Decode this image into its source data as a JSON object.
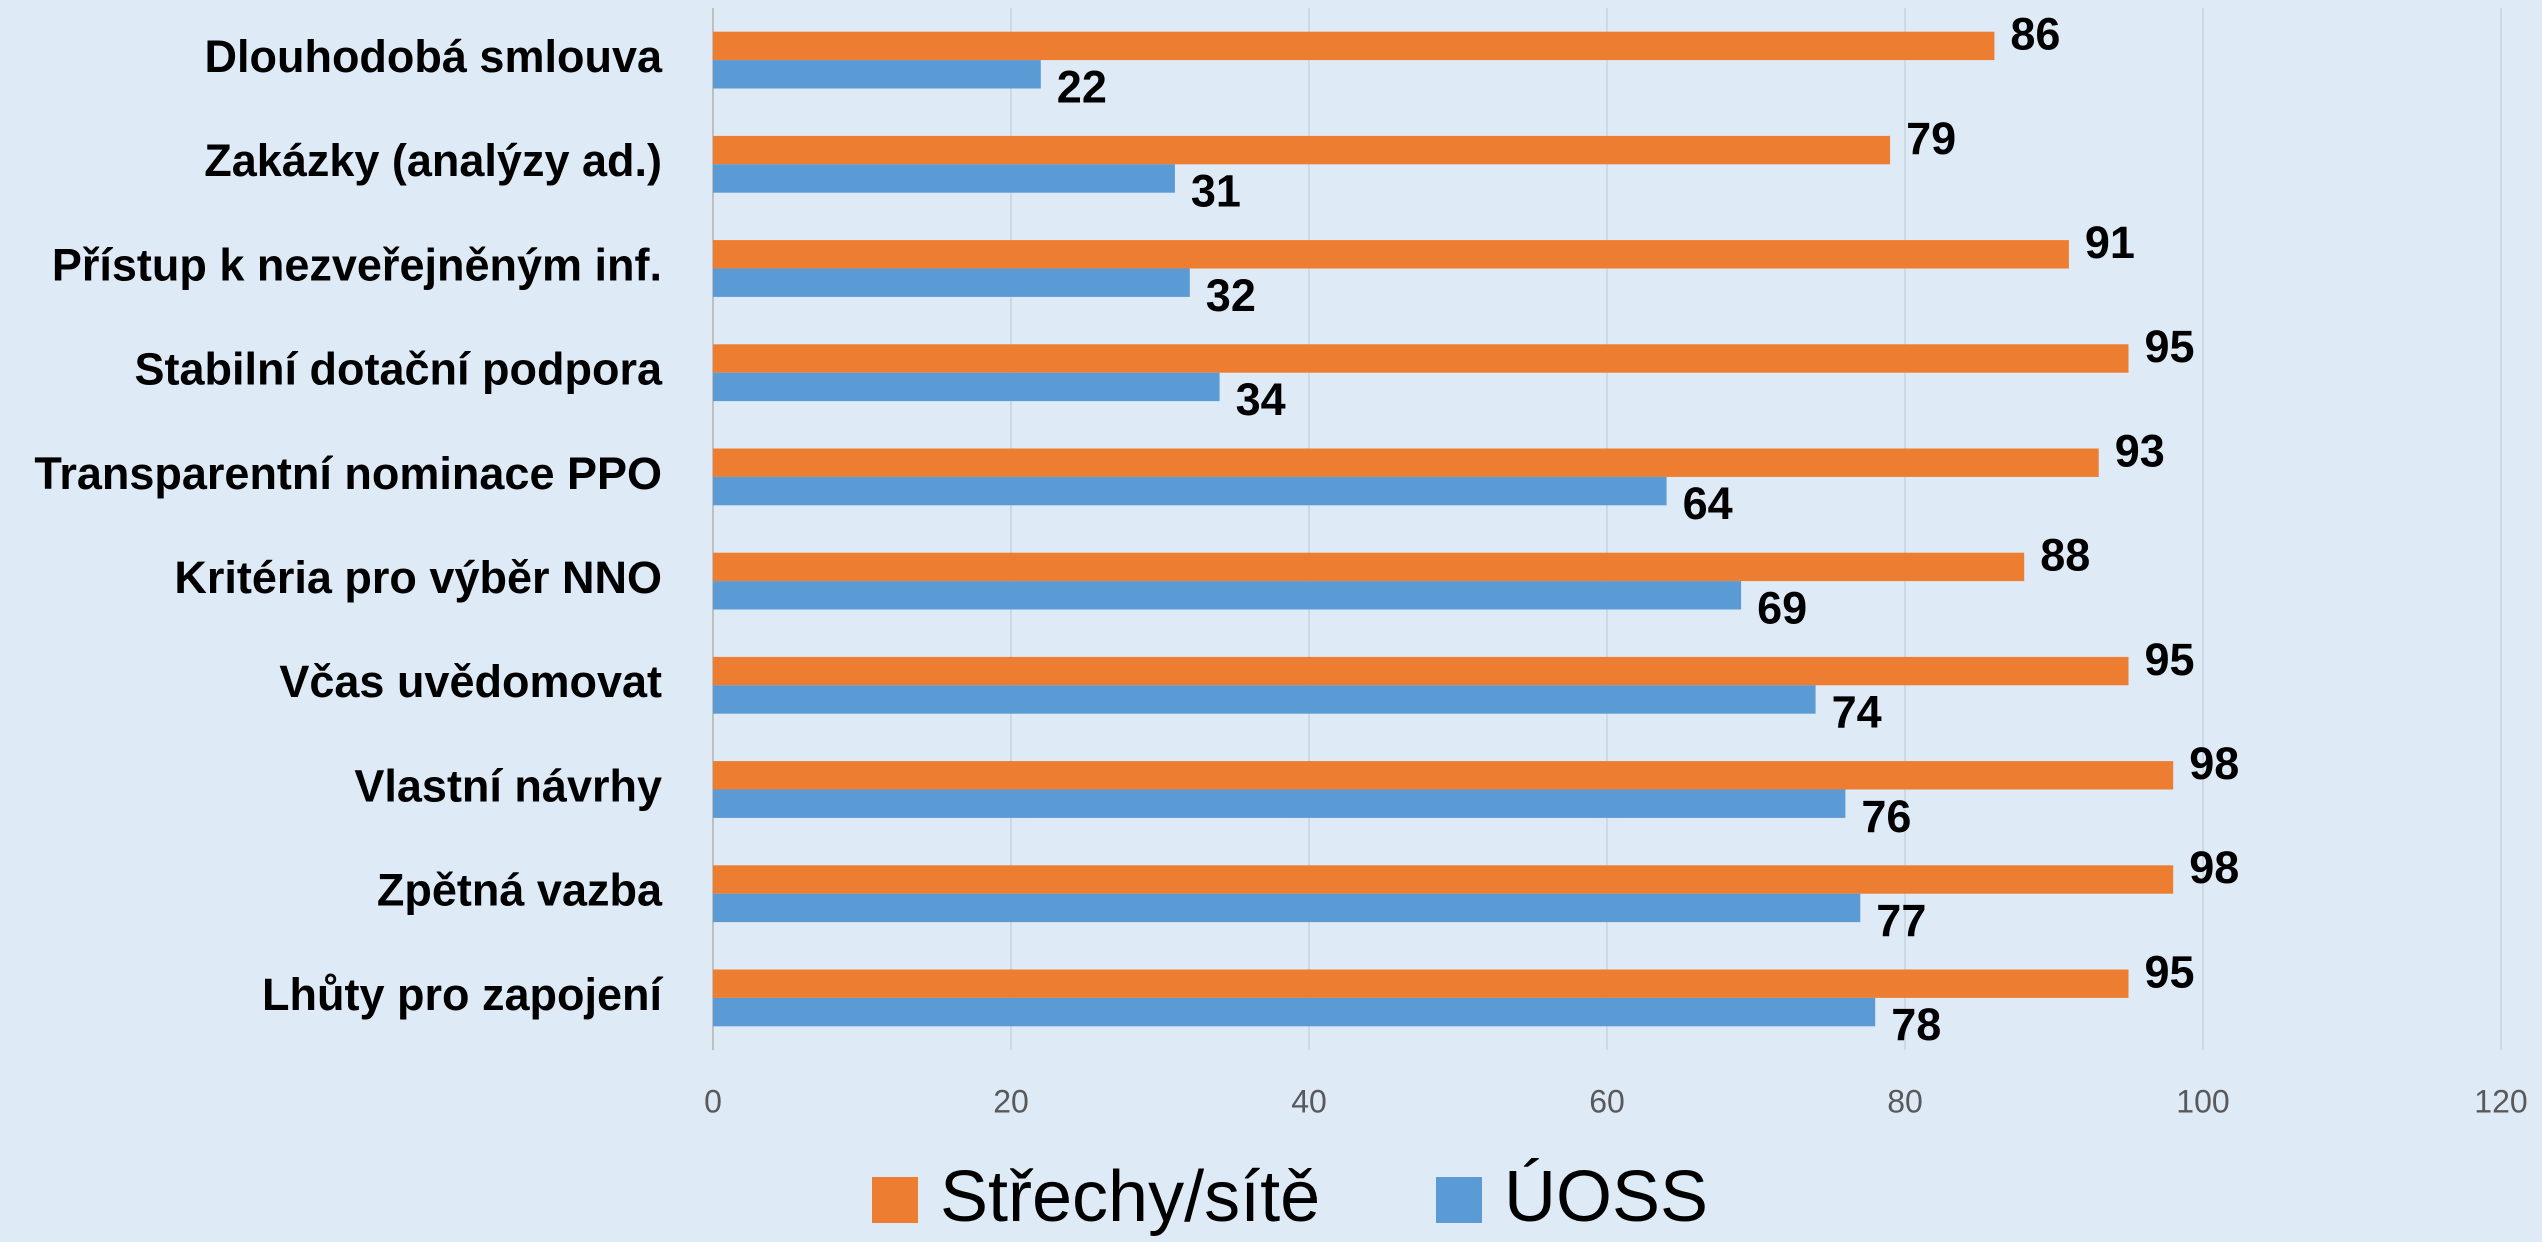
{
  "chart_data": {
    "type": "bar",
    "orientation": "horizontal",
    "categories": [
      "Dlouhodobá smlouva",
      "Zakázky (analýzy ad.)",
      "Přístup k nezveřejněným inf.",
      "Stabilní dotační podpora",
      "Transparentní nominace PPO",
      "Kritéria pro výběr NNO",
      "Včas uvědomovat",
      "Vlastní návrhy",
      "Zpětná vazba",
      "Lhůty pro zapojení"
    ],
    "series": [
      {
        "name": "Střechy/sítě",
        "color": "#ed7d31",
        "values": [
          86,
          79,
          91,
          95,
          93,
          88,
          95,
          98,
          98,
          95
        ]
      },
      {
        "name": "ÚOSS",
        "color": "#5b9bd5",
        "values": [
          22,
          31,
          32,
          34,
          64,
          69,
          74,
          76,
          77,
          78
        ]
      }
    ],
    "xlim": [
      0,
      120
    ],
    "xticks": [
      0,
      20,
      40,
      60,
      80,
      100,
      120
    ],
    "grid": true,
    "legend": "bottom"
  }
}
